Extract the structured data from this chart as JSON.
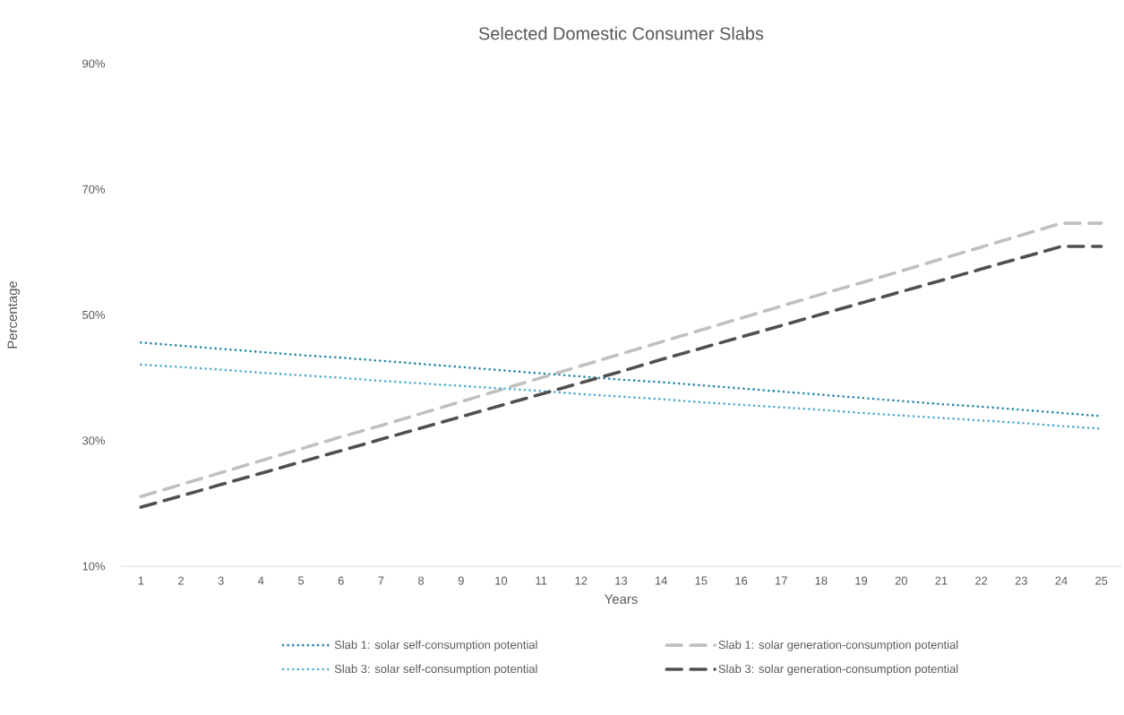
{
  "chart_data": {
    "type": "line",
    "title": "Selected Domestic Consumer Slabs",
    "xlabel": "Years",
    "ylabel": "Percentage",
    "categories": [
      "1",
      "2",
      "3",
      "4",
      "5",
      "6",
      "7",
      "8",
      "9",
      "10",
      "11",
      "12",
      "13",
      "14",
      "15",
      "16",
      "17",
      "18",
      "19",
      "20",
      "21",
      "22",
      "23",
      "24",
      "25"
    ],
    "ylim": [
      10,
      90
    ],
    "yticks": [
      {
        "value": 10,
        "label": "10%"
      },
      {
        "value": 30,
        "label": "30%"
      },
      {
        "value": 50,
        "label": "50%"
      },
      {
        "value": 70,
        "label": "70%"
      },
      {
        "value": 90,
        "label": "90%"
      }
    ],
    "legend": "bottom",
    "series": [
      {
        "name": "Slab 1: solar self-consumption potential",
        "color": "#1f83a8",
        "line_style": "dotted",
        "values": [
          45.6,
          45.1,
          44.6,
          44.1,
          43.6,
          43.2,
          42.7,
          42.2,
          41.7,
          41.2,
          40.7,
          40.2,
          39.7,
          39.3,
          38.8,
          38.3,
          37.8,
          37.3,
          36.8,
          36.3,
          35.8,
          35.4,
          34.9,
          34.4,
          33.9
        ]
      },
      {
        "name": "Slab 1: solar generation-consumption potential",
        "color": "#c0c0c0",
        "line_style": "dashed",
        "values": [
          21.1,
          23.0,
          24.9,
          26.8,
          28.7,
          30.6,
          32.4,
          34.3,
          36.2,
          38.1,
          40.0,
          41.9,
          43.8,
          45.7,
          47.6,
          49.5,
          51.4,
          53.3,
          55.1,
          57.0,
          58.9,
          60.8,
          62.7,
          64.6,
          64.6
        ]
      },
      {
        "name": "Slab 3: solar self-consumption potential",
        "color": "#4ba8cf",
        "line_style": "dotted",
        "values": [
          42.1,
          41.7,
          41.3,
          40.8,
          40.4,
          40.0,
          39.5,
          39.1,
          38.7,
          38.3,
          37.9,
          37.4,
          37.0,
          36.6,
          36.1,
          35.7,
          35.3,
          34.9,
          34.4,
          34.0,
          33.6,
          33.2,
          32.8,
          32.3,
          31.9
        ]
      },
      {
        "name": "Slab 3: solar generation-consumption potential",
        "color": "#505050",
        "line_style": "dashed",
        "values": [
          19.4,
          21.2,
          23.0,
          24.8,
          26.6,
          28.4,
          30.2,
          32.0,
          33.8,
          35.6,
          37.4,
          39.2,
          41.0,
          42.9,
          44.7,
          46.5,
          48.3,
          50.1,
          51.9,
          53.7,
          55.5,
          57.3,
          59.1,
          60.9,
          60.9
        ]
      }
    ]
  }
}
